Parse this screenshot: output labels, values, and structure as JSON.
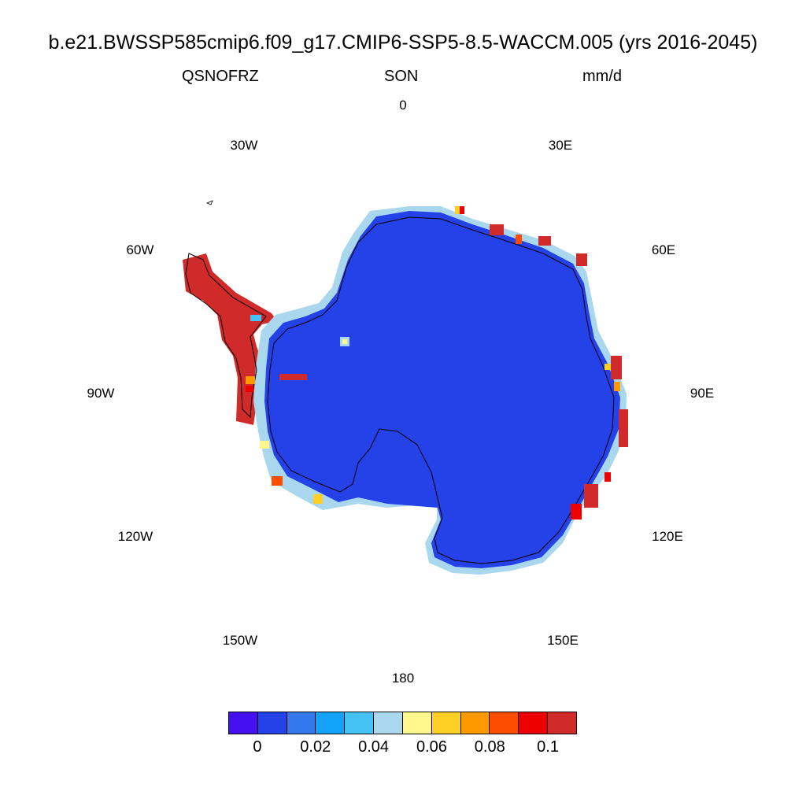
{
  "title": "b.e21.BWSSP585cmip6.f09_g17.CMIP6-SSP5-8.5-WACCM.005 (yrs 2016-2045)",
  "variable": "QSNOFRZ",
  "season": "SON",
  "units": "mm/d",
  "lon_labels": [
    "0",
    "30E",
    "60E",
    "90E",
    "120E",
    "150E",
    "180",
    "150W",
    "120W",
    "90W",
    "60W",
    "30W"
  ],
  "colorbar": {
    "colors": [
      "#4510f0",
      "#2541e8",
      "#3478ee",
      "#12a2f8",
      "#44c2f4",
      "#a9d7ee",
      "#fff68c",
      "#ffcf25",
      "#ff9900",
      "#ff4d00",
      "#ee0000",
      "#d02a2a"
    ],
    "labels": [
      "0",
      "0.02",
      "0.04",
      "0.06",
      "0.08",
      "0.1"
    ]
  },
  "map": {
    "projection": "south polar stereographic",
    "ice_sheet_color": "#2541e8",
    "peninsula_color": "#d02a2a"
  }
}
